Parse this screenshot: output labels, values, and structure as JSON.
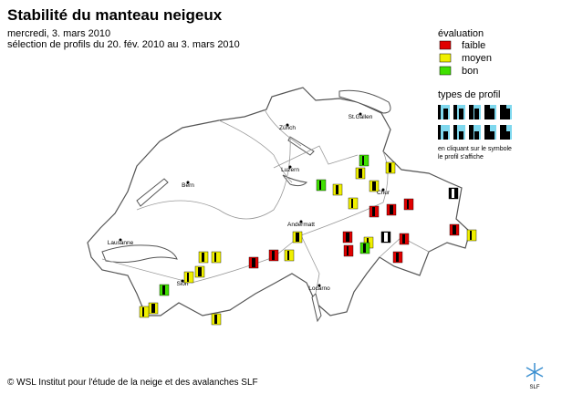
{
  "header": {
    "title": "Stabilité du manteau neigeux",
    "date": "mercredi, 3. mars 2010",
    "selection": "sélection de profils du 20. fév. 2010 au 3. mars 2010"
  },
  "legend": {
    "title": "évaluation",
    "items": [
      "faible",
      "moyen",
      "bon"
    ],
    "profile_types_title": "types de profil",
    "hint": [
      "en cliquant sur le symbole",
      "le profil s'affiche"
    ]
  },
  "cities": [
    "Zürich",
    "St.Gallen",
    "Luzern",
    "Bern",
    "Chur",
    "Andermatt",
    "Lausanne",
    "Sion",
    "Locarno"
  ],
  "footer": {
    "copyright": "© WSL Institut pour l'étude de la neige et des avalanches SLF",
    "logo_text": "SLF"
  }
}
